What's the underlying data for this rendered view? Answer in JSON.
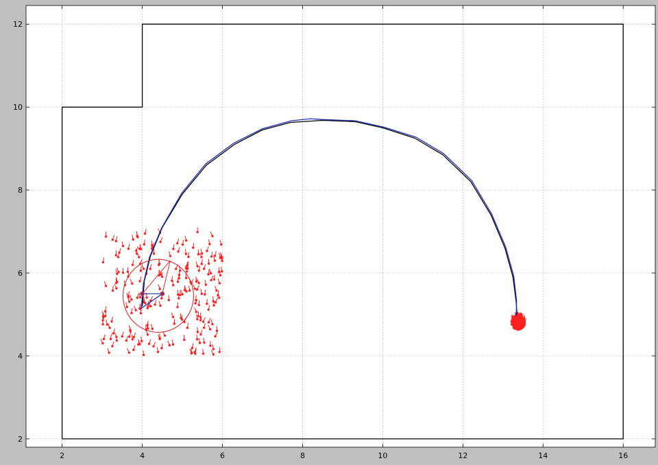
{
  "chart_data": {
    "type": "line",
    "title": "",
    "xlabel": "",
    "ylabel": "",
    "xlim": [
      1.1,
      16.8
    ],
    "ylim": [
      1.8,
      12.45
    ],
    "xticks": [
      2,
      4,
      6,
      8,
      10,
      12,
      14,
      16
    ],
    "yticks": [
      2,
      4,
      6,
      8,
      10,
      12
    ],
    "xtick_labels": [
      "2",
      "4",
      "6",
      "8",
      "10",
      "12",
      "14",
      "16"
    ],
    "ytick_labels": [
      "2",
      "4",
      "6",
      "8",
      "10",
      "12"
    ],
    "grid": true,
    "grid_style": "dotted",
    "colors": {
      "background": "#c0c0c0",
      "plot": "#ffffff",
      "boundary": "#000000",
      "estimate": "#1f2fb0",
      "particles": "#ff2020",
      "grid": "#b0b0b0"
    },
    "series": [
      {
        "kind": "boundary",
        "x": [
          2,
          2,
          4,
          4,
          16,
          16,
          2
        ],
        "y": [
          2,
          10,
          10,
          12,
          12,
          2,
          2
        ]
      },
      {
        "kind": "true-path",
        "x": [
          4.0,
          4.05,
          4.2,
          4.5,
          5.0,
          5.6,
          6.3,
          7.0,
          7.7,
          8.5,
          9.3,
          10.0,
          10.8,
          11.5,
          12.2,
          12.7,
          13.05,
          13.25,
          13.33,
          13.35
        ],
        "y": [
          5.2,
          5.8,
          6.4,
          7.1,
          7.9,
          8.6,
          9.1,
          9.45,
          9.63,
          9.68,
          9.65,
          9.5,
          9.25,
          8.85,
          8.2,
          7.4,
          6.6,
          5.9,
          5.3,
          5.0
        ]
      },
      {
        "kind": "estimated-path",
        "x": [
          3.98,
          4.03,
          4.18,
          4.48,
          4.98,
          5.58,
          6.28,
          7.0,
          7.72,
          8.2,
          8.5,
          9.32,
          10.02,
          10.82,
          11.52,
          12.22,
          12.72,
          13.07,
          13.27,
          13.34,
          13.33
        ],
        "y": [
          5.15,
          5.75,
          6.38,
          7.08,
          7.92,
          8.63,
          9.13,
          9.48,
          9.67,
          9.72,
          9.7,
          9.67,
          9.52,
          9.28,
          8.88,
          8.23,
          7.42,
          6.62,
          5.92,
          5.32,
          4.95
        ]
      }
    ],
    "sensor_circle": {
      "center": [
        4.4,
        5.45
      ],
      "radius": 0.88
    },
    "robot_pose": {
      "x": [
        4.0,
        4.5,
        3.98
      ],
      "y": [
        5.5,
        5.5,
        5.15
      ],
      "ray_to": [
        4.7,
        6.3
      ]
    },
    "particle_clouds": [
      {
        "name": "initial",
        "x_range": [
          3.0,
          6.0
        ],
        "y_range": [
          4.0,
          7.0
        ],
        "count": 230
      },
      {
        "name": "converged",
        "center": [
          13.38,
          4.8
        ],
        "spread": [
          0.17,
          0.17
        ],
        "count": 220
      }
    ]
  }
}
